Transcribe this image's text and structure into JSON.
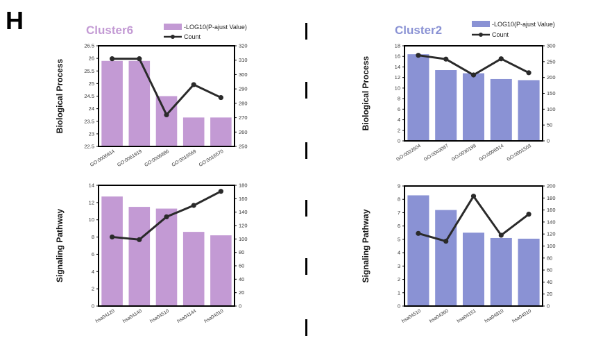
{
  "panel_label": "H",
  "legend": {
    "bar_label": "-LOG10(P-ajust Value)",
    "line_label": "Count"
  },
  "colors": {
    "cluster6": "#c39ad4",
    "cluster2": "#8a92d4",
    "line": "#2a2a2a"
  },
  "row_labels": [
    "Biological Process",
    "Signaling Pathway"
  ],
  "chart_data": [
    {
      "type": "bar",
      "title": "Cluster6",
      "ylabel": "Biological Process",
      "categories": [
        "GO:0006914",
        "GO:0061919",
        "GO:0006886",
        "GO:0016569",
        "GO:0016570"
      ],
      "series": [
        {
          "name": "-LOG10(P-ajust Value)",
          "type": "bar",
          "values": [
            25.9,
            25.9,
            24.5,
            23.65,
            23.65
          ]
        },
        {
          "name": "Count",
          "type": "line",
          "values": [
            311,
            311,
            272,
            293,
            284
          ]
        }
      ],
      "ylim": [
        22.5,
        26.5
      ],
      "yticks": [
        "22.5",
        "23",
        "23.5",
        "24",
        "24.5",
        "25",
        "25.5",
        "26",
        "26.5"
      ],
      "y2lim": [
        250,
        320
      ],
      "y2ticks": [
        "250",
        "260",
        "270",
        "280",
        "290",
        "300",
        "310",
        "320"
      ]
    },
    {
      "type": "bar",
      "title": "Cluster2",
      "ylabel": "Biological Process",
      "categories": [
        "GO:0022604",
        "GO:0043087",
        "GO:0030198",
        "GO:0006914",
        "GO:0001503"
      ],
      "series": [
        {
          "name": "-LOG10(P-ajust Value)",
          "type": "bar",
          "values": [
            16.4,
            13.4,
            12.8,
            11.7,
            11.5
          ]
        },
        {
          "name": "Count",
          "type": "line",
          "values": [
            270,
            258,
            208,
            259,
            215
          ]
        }
      ],
      "ylim": [
        0,
        18
      ],
      "yticks": [
        "0",
        "2",
        "4",
        "6",
        "8",
        "10",
        "12",
        "14",
        "16",
        "18"
      ],
      "y2lim": [
        0,
        300
      ],
      "y2ticks": [
        "0",
        "50",
        "100",
        "150",
        "200",
        "250",
        "300"
      ]
    },
    {
      "type": "bar",
      "title": "",
      "ylabel": "Signaling Pathway",
      "categories": [
        "hsa04120",
        "hsa04140",
        "hsa04510",
        "hsa04144",
        "hsa04010"
      ],
      "series": [
        {
          "name": "-LOG10(P-ajust Value)",
          "type": "bar",
          "values": [
            12.7,
            11.5,
            11.3,
            8.6,
            8.2
          ]
        },
        {
          "name": "Count",
          "type": "line",
          "values": [
            103,
            99,
            133,
            150,
            171
          ]
        }
      ],
      "ylim": [
        0,
        14
      ],
      "yticks": [
        "0",
        "2",
        "4",
        "6",
        "8",
        "10",
        "12",
        "14"
      ],
      "y2lim": [
        0,
        180
      ],
      "y2ticks": [
        "0",
        "20",
        "40",
        "60",
        "80",
        "100",
        "120",
        "140",
        "160",
        "180"
      ]
    },
    {
      "type": "bar",
      "title": "",
      "ylabel": "Signaling Pathway",
      "categories": [
        "hsa04510",
        "hsa04360",
        "hsa04151",
        "hsa04810",
        "hsa04010"
      ],
      "series": [
        {
          "name": "-LOG10(P-ajust Value)",
          "type": "bar",
          "values": [
            8.3,
            7.2,
            5.5,
            5.1,
            5.05
          ]
        },
        {
          "name": "Count",
          "type": "line",
          "values": [
            121,
            108,
            183,
            118,
            153
          ]
        }
      ],
      "ylim": [
        0,
        9
      ],
      "yticks": [
        "0",
        "1",
        "2",
        "3",
        "4",
        "5",
        "6",
        "7",
        "8",
        "9"
      ],
      "y2lim": [
        0,
        200
      ],
      "y2ticks": [
        "0",
        "20",
        "40",
        "60",
        "80",
        "100",
        "120",
        "140",
        "160",
        "180",
        "200"
      ]
    }
  ]
}
